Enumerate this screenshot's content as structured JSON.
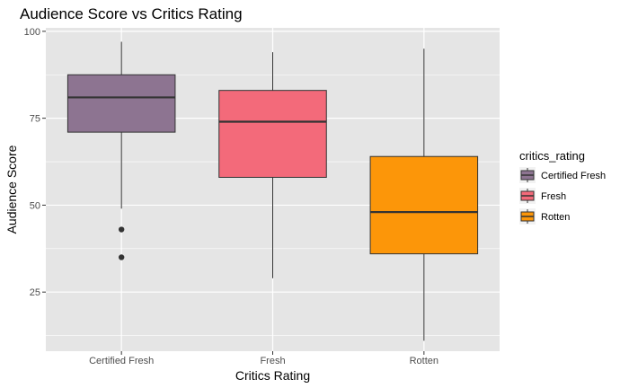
{
  "chart_data": {
    "type": "boxplot",
    "title": "Audience Score vs Critics Rating",
    "xlabel": "Critics Rating",
    "ylabel": "Audience Score",
    "ylim": [
      8,
      101
    ],
    "yticks": [
      25,
      50,
      75,
      100
    ],
    "grid": true,
    "categories": [
      "Certified Fresh",
      "Fresh",
      "Rotten"
    ],
    "boxes": [
      {
        "category": "Certified Fresh",
        "whisker_low": 49,
        "q1": 71,
        "median": 81,
        "q3": 87.5,
        "whisker_high": 97,
        "outliers": [
          43,
          35
        ],
        "color": "#8d7491"
      },
      {
        "category": "Fresh",
        "whisker_low": 29,
        "q1": 58,
        "median": 74,
        "q3": 83,
        "whisker_high": 94,
        "outliers": [],
        "color": "#f36a7a"
      },
      {
        "category": "Rotten",
        "whisker_low": 11,
        "q1": 36,
        "median": 48,
        "q3": 64,
        "whisker_high": 95,
        "outliers": [],
        "color": "#fc9609"
      }
    ],
    "legend": {
      "title": "critics_rating",
      "position": "right",
      "items": [
        "Certified Fresh",
        "Fresh",
        "Rotten"
      ]
    }
  },
  "colors": {
    "panel_background": "#e5e5e5",
    "gridline": "#ffffff",
    "outline": "#333333"
  }
}
